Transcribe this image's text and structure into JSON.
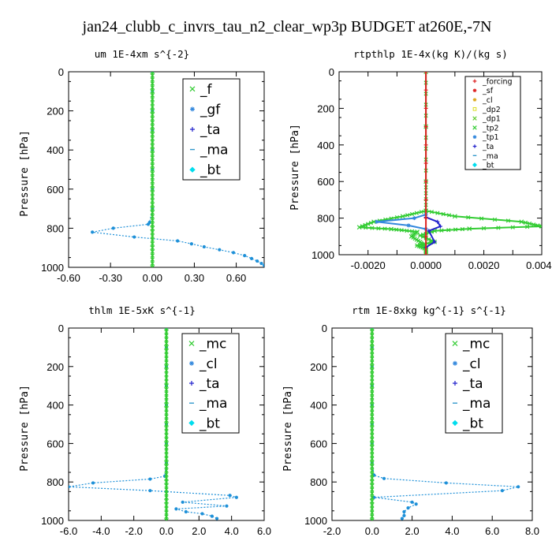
{
  "figure_title": "jan24_clubb_c_invrs_tau_n2_clear_wp3p  BUDGET at260E,-7N",
  "chart_data": [
    {
      "type": "line",
      "title": "um  1E-4xm s^{-2}",
      "ylabel": "Pressure [hPa]",
      "xlim": [
        -0.6,
        0.8
      ],
      "ylim": [
        1000,
        0
      ],
      "xticks": [
        "-0.60",
        "-0.30",
        "0.00",
        "0.30",
        "0.60"
      ],
      "xtick_values": [
        -0.6,
        -0.3,
        0.0,
        0.3,
        0.6
      ],
      "yticks": [
        "0",
        "200",
        "400",
        "600",
        "800",
        "1000"
      ],
      "ytick_values": [
        0,
        200,
        400,
        600,
        800,
        1000
      ],
      "legend_style": "big",
      "legend": [
        {
          "label": "_f",
          "color": "#33cc33",
          "marker": "x"
        },
        {
          "label": "_gf",
          "color": "#3388dd",
          "marker": "star"
        },
        {
          "label": "_ta",
          "color": "#2222cc",
          "marker": "plus"
        },
        {
          "label": "_ma",
          "color": "#3399cc",
          "marker": "dash"
        },
        {
          "label": "_bt",
          "color": "#00ddee",
          "marker": "diamond"
        }
      ],
      "series": [
        {
          "color": "#1e90d8",
          "marker": "dot",
          "points": [
            [
              0.0,
              0
            ],
            [
              0.0,
              100
            ],
            [
              0.0,
              200
            ],
            [
              0.0,
              300
            ],
            [
              0.0,
              400
            ],
            [
              0.0,
              500
            ],
            [
              0.0,
              600
            ],
            [
              0.0,
              700
            ],
            [
              -0.02,
              770
            ],
            [
              -0.03,
              780
            ],
            [
              -0.28,
              800
            ],
            [
              -0.43,
              820
            ],
            [
              -0.13,
              845
            ],
            [
              0.18,
              865
            ],
            [
              0.28,
              880
            ],
            [
              0.37,
              895
            ],
            [
              0.48,
              910
            ],
            [
              0.58,
              925
            ],
            [
              0.66,
              940
            ],
            [
              0.71,
              955
            ],
            [
              0.75,
              968
            ],
            [
              0.78,
              980
            ],
            [
              0.8,
              990
            ],
            [
              0.81,
              998
            ]
          ]
        },
        {
          "color": "#33cc33",
          "marker": "x",
          "points": [
            [
              0.0,
              0
            ],
            [
              0.0,
              100
            ],
            [
              0.0,
              200
            ],
            [
              0.0,
              300
            ],
            [
              0.0,
              400
            ],
            [
              0.0,
              500
            ],
            [
              0.0,
              600
            ],
            [
              0.0,
              700
            ],
            [
              0.0,
              800
            ],
            [
              0.0,
              900
            ],
            [
              0.0,
              1000
            ]
          ]
        }
      ]
    },
    {
      "type": "line",
      "title": "rtpthlp  1E-4x(kg K)/(kg s)",
      "ylabel": "Pressure [hPa]",
      "xlim": [
        -0.003,
        0.004
      ],
      "ylim": [
        1000,
        0
      ],
      "xticks": [
        "-0.0020",
        "-0.0010",
        "0.0000",
        "0.0010",
        "0.0020",
        "0.0030",
        "0.0040"
      ],
      "xtick_values": [
        -0.002,
        -0.001,
        0.0,
        0.001,
        0.002,
        0.003,
        0.004
      ],
      "xtick_label_mask": [
        true,
        false,
        true,
        false,
        true,
        false,
        true
      ],
      "yticks": [
        "0",
        "200",
        "400",
        "600",
        "800",
        "1000"
      ],
      "ytick_values": [
        0,
        200,
        400,
        600,
        800,
        1000
      ],
      "legend_style": "small",
      "legend": [
        {
          "label": "_forcing",
          "color": "#dd2222",
          "marker": "plus"
        },
        {
          "label": "_sf",
          "color": "#dd2222",
          "marker": "star"
        },
        {
          "label": "_cl",
          "color": "#ddaa22",
          "marker": "star"
        },
        {
          "label": "_dp2",
          "color": "#dddd22",
          "marker": "square"
        },
        {
          "label": "_dp1",
          "color": "#66cc33",
          "marker": "x"
        },
        {
          "label": "_tp2",
          "color": "#33cc33",
          "marker": "x"
        },
        {
          "label": "_tp1",
          "color": "#3388dd",
          "marker": "star"
        },
        {
          "label": "_ta",
          "color": "#2222cc",
          "marker": "plus"
        },
        {
          "label": "_ma",
          "color": "#3399cc",
          "marker": "dash"
        },
        {
          "label": "_bt",
          "color": "#00ddee",
          "marker": "diamond"
        }
      ],
      "series": [
        {
          "color": "#33cc33",
          "marker": "x",
          "points": [
            [
              0.0,
              0
            ],
            [
              0.0,
              300
            ],
            [
              0.0,
              600
            ],
            [
              0.0,
              760
            ],
            [
              0.001,
              790
            ],
            [
              0.0033,
              820
            ],
            [
              0.004,
              845
            ],
            [
              0.0015,
              858
            ],
            [
              0.0003,
              870
            ],
            [
              -0.0002,
              895
            ],
            [
              0.0003,
              930
            ],
            [
              -0.0003,
              950
            ],
            [
              0.0,
              970
            ],
            [
              0.0,
              1000
            ]
          ]
        },
        {
          "color": "#33cc33",
          "marker": "x",
          "points": [
            [
              0.0,
              760
            ],
            [
              -0.0008,
              790
            ],
            [
              -0.0018,
              820
            ],
            [
              -0.0023,
              850
            ],
            [
              -0.0012,
              860
            ],
            [
              -0.0003,
              875
            ],
            [
              -0.0005,
              900
            ],
            [
              -0.0002,
              930
            ],
            [
              0.0,
              960
            ],
            [
              0.0,
              1000
            ]
          ]
        },
        {
          "color": "#3388dd",
          "marker": "star",
          "points": [
            [
              0.0,
              780
            ],
            [
              -0.0004,
              800
            ],
            [
              -0.0017,
              820
            ],
            [
              -0.0006,
              840
            ],
            [
              0.0,
              860
            ]
          ]
        },
        {
          "color": "#2222cc",
          "marker": "plus",
          "points": [
            [
              0.0,
              795
            ],
            [
              0.0004,
              820
            ],
            [
              0.0005,
              845
            ],
            [
              0.0001,
              870
            ],
            [
              0.0003,
              930
            ],
            [
              0.0,
              960
            ]
          ]
        },
        {
          "color": "#dd2222",
          "marker": "plus",
          "points": [
            [
              0.0,
              0
            ],
            [
              0.0,
              100
            ],
            [
              0.0,
              200
            ],
            [
              0.0,
              300
            ],
            [
              0.0,
              400
            ],
            [
              0.0,
              500
            ],
            [
              0.0,
              600
            ],
            [
              0.0,
              700
            ],
            [
              0.0,
              800
            ],
            [
              0.0,
              900
            ],
            [
              0.0,
              1000
            ]
          ]
        }
      ]
    },
    {
      "type": "line",
      "title": "thlm  1E-5xK s^{-1}",
      "ylabel": "Pressure [hPa]",
      "xlim": [
        -6.0,
        6.0
      ],
      "ylim": [
        1000,
        0
      ],
      "xticks": [
        "-6.0",
        "-4.0",
        "-2.0",
        "0.0",
        "2.0",
        "4.0",
        "6.0"
      ],
      "xtick_values": [
        -6.0,
        -4.0,
        -2.0,
        0.0,
        2.0,
        4.0,
        6.0
      ],
      "yticks": [
        "0",
        "200",
        "400",
        "600",
        "800",
        "1000"
      ],
      "ytick_values": [
        0,
        200,
        400,
        600,
        800,
        1000
      ],
      "legend_style": "big",
      "legend": [
        {
          "label": "_mc",
          "color": "#33cc33",
          "marker": "x"
        },
        {
          "label": "_cl",
          "color": "#3388dd",
          "marker": "star"
        },
        {
          "label": "_ta",
          "color": "#2222cc",
          "marker": "plus"
        },
        {
          "label": "_ma",
          "color": "#3399cc",
          "marker": "dash"
        },
        {
          "label": "_bt",
          "color": "#00ddee",
          "marker": "diamond"
        }
      ],
      "series": [
        {
          "color": "#1e90d8",
          "marker": "dot",
          "points": [
            [
              0.0,
              0
            ],
            [
              0.0,
              100
            ],
            [
              0.0,
              200
            ],
            [
              0.0,
              300
            ],
            [
              0.0,
              400
            ],
            [
              0.0,
              500
            ],
            [
              0.0,
              600
            ],
            [
              0.0,
              700
            ],
            [
              -0.1,
              770
            ],
            [
              -1.0,
              785
            ],
            [
              -4.5,
              805
            ],
            [
              -6.0,
              825
            ],
            [
              -1.0,
              845
            ],
            [
              3.9,
              870
            ],
            [
              4.3,
              880
            ],
            [
              1.0,
              905
            ],
            [
              3.7,
              925
            ],
            [
              0.6,
              940
            ],
            [
              1.2,
              955
            ],
            [
              2.2,
              965
            ],
            [
              2.8,
              978
            ],
            [
              3.1,
              990
            ]
          ]
        },
        {
          "color": "#33cc33",
          "marker": "x",
          "points": [
            [
              0.0,
              0
            ],
            [
              0.0,
              100
            ],
            [
              0.0,
              200
            ],
            [
              0.0,
              300
            ],
            [
              0.0,
              400
            ],
            [
              0.0,
              500
            ],
            [
              0.0,
              600
            ],
            [
              0.0,
              700
            ],
            [
              0.0,
              800
            ],
            [
              0.0,
              900
            ],
            [
              0.0,
              1000
            ]
          ]
        }
      ]
    },
    {
      "type": "line",
      "title": "rtm  1E-8xkg kg^{-1} s^{-1}",
      "ylabel": "Pressure [hPa]",
      "xlim": [
        -2.0,
        8.0
      ],
      "ylim": [
        1000,
        0
      ],
      "xticks": [
        "-2.0",
        "0.0",
        "2.0",
        "4.0",
        "6.0",
        "8.0"
      ],
      "xtick_values": [
        -2.0,
        0.0,
        2.0,
        4.0,
        6.0,
        8.0
      ],
      "yticks": [
        "0",
        "200",
        "400",
        "600",
        "800",
        "1000"
      ],
      "ytick_values": [
        0,
        200,
        400,
        600,
        800,
        1000
      ],
      "legend_style": "big",
      "legend": [
        {
          "label": "_mc",
          "color": "#33cc33",
          "marker": "x"
        },
        {
          "label": "_cl",
          "color": "#3388dd",
          "marker": "star"
        },
        {
          "label": "_ta",
          "color": "#2222cc",
          "marker": "plus"
        },
        {
          "label": "_ma",
          "color": "#3399cc",
          "marker": "dash"
        },
        {
          "label": "_bt",
          "color": "#00ddee",
          "marker": "diamond"
        }
      ],
      "series": [
        {
          "color": "#1e90d8",
          "marker": "dot",
          "points": [
            [
              0.0,
              0
            ],
            [
              0.0,
              100
            ],
            [
              0.0,
              200
            ],
            [
              0.0,
              300
            ],
            [
              0.0,
              400
            ],
            [
              0.0,
              500
            ],
            [
              0.0,
              600
            ],
            [
              0.0,
              700
            ],
            [
              0.1,
              765
            ],
            [
              0.6,
              782
            ],
            [
              3.7,
              805
            ],
            [
              7.3,
              825
            ],
            [
              6.5,
              845
            ],
            [
              0.1,
              880
            ],
            [
              2.0,
              905
            ],
            [
              2.2,
              915
            ],
            [
              1.8,
              935
            ],
            [
              1.6,
              955
            ],
            [
              1.6,
              975
            ],
            [
              1.5,
              990
            ]
          ]
        },
        {
          "color": "#33cc33",
          "marker": "x",
          "points": [
            [
              0.0,
              0
            ],
            [
              0.0,
              100
            ],
            [
              0.0,
              200
            ],
            [
              0.0,
              300
            ],
            [
              0.0,
              400
            ],
            [
              0.0,
              500
            ],
            [
              0.0,
              600
            ],
            [
              0.0,
              700
            ],
            [
              0.0,
              800
            ],
            [
              0.0,
              900
            ],
            [
              0.0,
              1000
            ]
          ]
        }
      ]
    }
  ]
}
